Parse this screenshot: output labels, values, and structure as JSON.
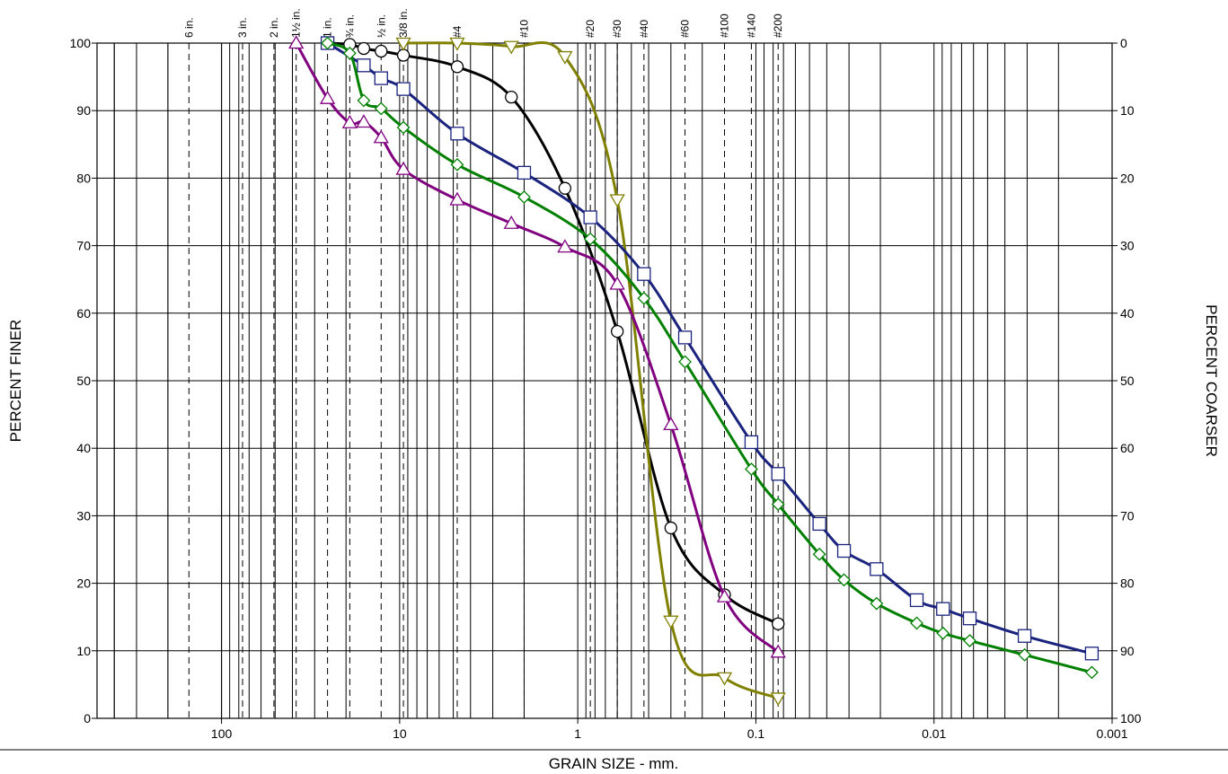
{
  "chart_data": {
    "type": "line",
    "xlabel": "GRAIN SIZE - mm.",
    "ylabel": "PERCENT FINER",
    "y2label": "PERCENT COARSER",
    "x_scale": "log-reversed",
    "xlim": [
      500,
      0.001
    ],
    "ylim": [
      0,
      100
    ],
    "y2lim": [
      100,
      0
    ],
    "grid": true,
    "x_tick_labels": [
      {
        "value": 100,
        "label": "100"
      },
      {
        "value": 10,
        "label": "10"
      },
      {
        "value": 1,
        "label": "1"
      },
      {
        "value": 0.1,
        "label": "0.1"
      },
      {
        "value": 0.01,
        "label": "0.01"
      },
      {
        "value": 0.001,
        "label": "0.001"
      }
    ],
    "y_ticks": [
      0,
      10,
      20,
      30,
      40,
      50,
      60,
      70,
      80,
      90,
      100
    ],
    "y2_ticks": [
      100,
      90,
      80,
      70,
      60,
      50,
      40,
      30,
      20,
      10,
      0
    ],
    "sieves": [
      {
        "label": "6 in.",
        "size": 152.4
      },
      {
        "label": "3 in.",
        "size": 76.2
      },
      {
        "label": "2 in.",
        "size": 50.8
      },
      {
        "label": "1½ in.",
        "size": 38.1
      },
      {
        "label": "1 in.",
        "size": 25.4
      },
      {
        "label": "¾ in.",
        "size": 19.05
      },
      {
        "label": "½ in.",
        "size": 12.7
      },
      {
        "label": "3/8 in.",
        "size": 9.525
      },
      {
        "label": "#4",
        "size": 4.75
      },
      {
        "label": "#10",
        "size": 2.0
      },
      {
        "label": "#20",
        "size": 0.85
      },
      {
        "label": "#30",
        "size": 0.6
      },
      {
        "label": "#40",
        "size": 0.425
      },
      {
        "label": "#60",
        "size": 0.25
      },
      {
        "label": "#100",
        "size": 0.15
      },
      {
        "label": "#140",
        "size": 0.106
      },
      {
        "label": "#200",
        "size": 0.075
      }
    ],
    "series": [
      {
        "marker": "circle",
        "color": "#000000",
        "x": [
          25.4,
          19.05,
          15.9,
          12.7,
          9.525,
          4.75,
          2.36,
          1.18,
          0.6,
          0.3,
          0.15,
          0.075
        ],
        "y": [
          100,
          99.8,
          99.2,
          98.8,
          98.2,
          96.5,
          92,
          78.5,
          57.3,
          28.2,
          18.3,
          14
        ]
      },
      {
        "marker": "triangle-down",
        "color": "#808000",
        "x": [
          9.525,
          4.75,
          2.36,
          1.18,
          0.6,
          0.3,
          0.15,
          0.075
        ],
        "y": [
          100,
          100,
          99.5,
          98,
          76.8,
          14.4,
          6,
          3
        ]
      },
      {
        "marker": "square",
        "color": "#1a237e",
        "x": [
          25.4,
          15.9,
          12.7,
          9.525,
          4.75,
          2.0,
          0.85,
          0.425,
          0.25,
          0.106,
          0.075,
          0.044,
          0.032,
          0.021,
          0.0125,
          0.0089,
          0.0063,
          0.0031,
          0.0013
        ],
        "y": [
          100,
          96.7,
          94.8,
          93.2,
          86.6,
          80.8,
          74.2,
          65.8,
          56.4,
          40.9,
          36.2,
          28.8,
          24.8,
          22.1,
          17.5,
          16.2,
          14.8,
          12.2,
          9.6
        ]
      },
      {
        "marker": "diamond",
        "color": "#008000",
        "x": [
          25.4,
          19.05,
          15.9,
          12.7,
          9.525,
          4.75,
          2.0,
          0.85,
          0.425,
          0.25,
          0.106,
          0.075,
          0.044,
          0.032,
          0.021,
          0.0125,
          0.0089,
          0.0063,
          0.0031,
          0.0013
        ],
        "y": [
          100,
          98.5,
          91.5,
          90.3,
          87.5,
          82,
          77.2,
          71,
          62.2,
          52.8,
          36.9,
          31.7,
          24.3,
          20.5,
          17,
          14.1,
          12.6,
          11.5,
          9.4,
          6.8
        ]
      },
      {
        "marker": "triangle-up",
        "color": "#800080",
        "x": [
          38.1,
          25.4,
          19.05,
          15.9,
          12.7,
          9.525,
          4.75,
          2.36,
          1.18,
          0.6,
          0.3,
          0.15,
          0.075
        ],
        "y": [
          100,
          91.8,
          88.2,
          88.3,
          86,
          81.3,
          76.8,
          73.3,
          69.8,
          64.3,
          43.5,
          18,
          9.8
        ]
      }
    ]
  }
}
